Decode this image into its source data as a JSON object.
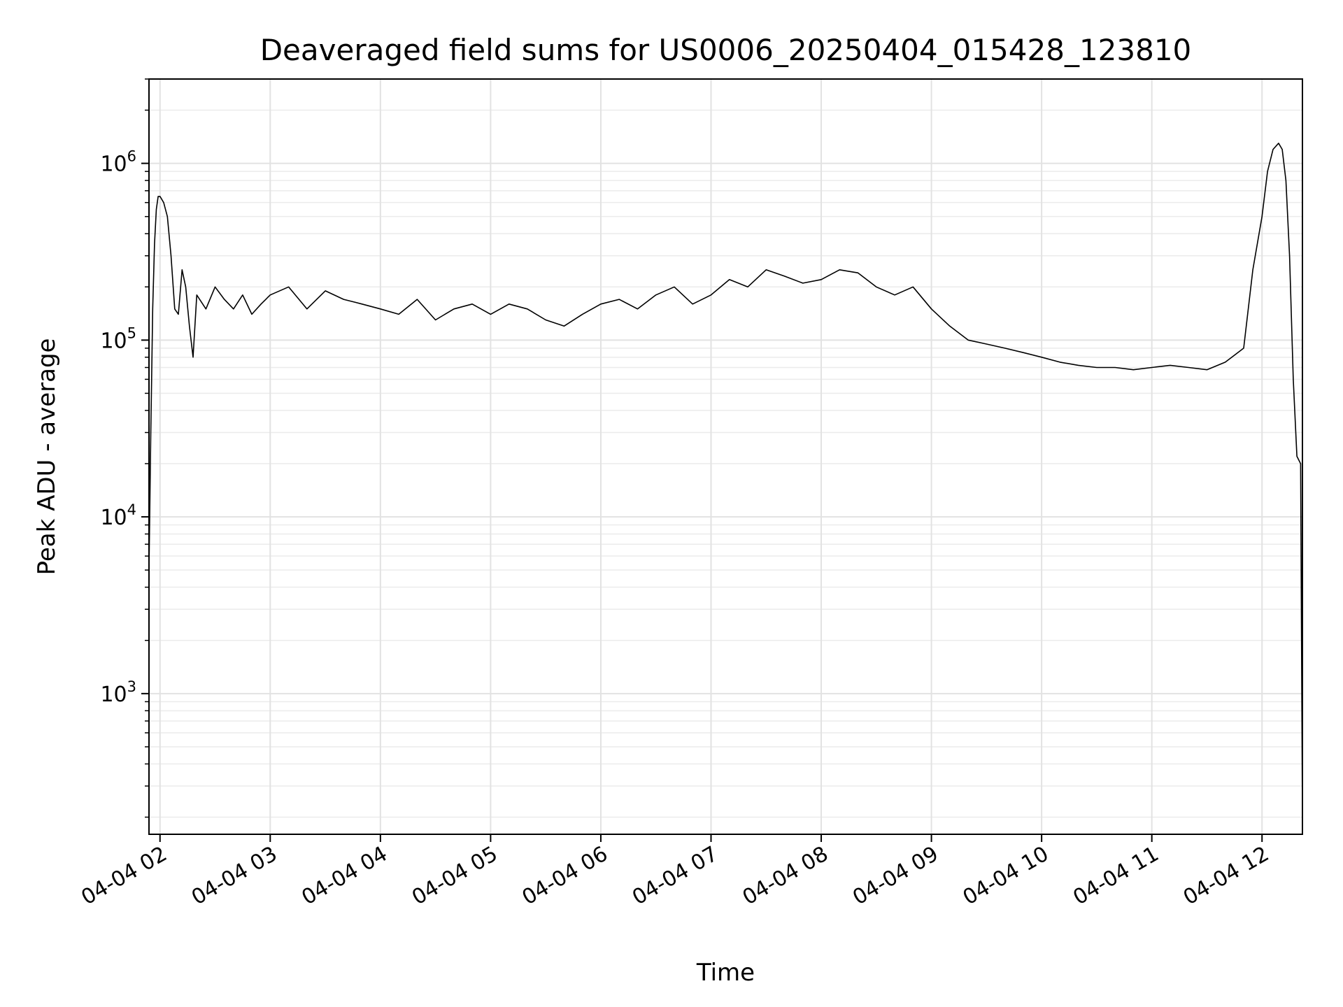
{
  "chart_data": {
    "type": "line",
    "title": "Deaveraged field sums for US0006_20250404_015428_123810",
    "xlabel": "Time",
    "ylabel": "Peak ADU - average",
    "yscale": "log",
    "ylim": [
      160,
      3000000
    ],
    "xlim": [
      "2025-04-04T01:54",
      "2025-04-04T12:22"
    ],
    "grid": true,
    "line_color": "#000000",
    "y_ticks": [
      {
        "base": "10",
        "exp": "3",
        "value": 1000
      },
      {
        "base": "10",
        "exp": "4",
        "value": 10000
      },
      {
        "base": "10",
        "exp": "5",
        "value": 100000
      },
      {
        "base": "10",
        "exp": "6",
        "value": 1000000
      }
    ],
    "x_ticks": [
      {
        "label": "04-04 02",
        "time": "2025-04-04T02:00"
      },
      {
        "label": "04-04 03",
        "time": "2025-04-04T03:00"
      },
      {
        "label": "04-04 04",
        "time": "2025-04-04T04:00"
      },
      {
        "label": "04-04 05",
        "time": "2025-04-04T05:00"
      },
      {
        "label": "04-04 06",
        "time": "2025-04-04T06:00"
      },
      {
        "label": "04-04 07",
        "time": "2025-04-04T07:00"
      },
      {
        "label": "04-04 08",
        "time": "2025-04-04T08:00"
      },
      {
        "label": "04-04 09",
        "time": "2025-04-04T09:00"
      },
      {
        "label": "04-04 10",
        "time": "2025-04-04T10:00"
      },
      {
        "label": "04-04 11",
        "time": "2025-04-04T11:00"
      },
      {
        "label": "04-04 12",
        "time": "2025-04-04T12:00"
      }
    ],
    "series": [
      {
        "x": [
          "2025-04-04T01:54",
          "2025-04-04T01:55",
          "2025-04-04T01:56",
          "2025-04-04T01:57",
          "2025-04-04T01:58",
          "2025-04-04T01:59",
          "2025-04-04T02:00",
          "2025-04-04T02:02",
          "2025-04-04T02:04",
          "2025-04-04T02:06",
          "2025-04-04T02:08",
          "2025-04-04T02:10",
          "2025-04-04T02:12",
          "2025-04-04T02:14",
          "2025-04-04T02:16",
          "2025-04-04T02:18",
          "2025-04-04T02:20",
          "2025-04-04T02:25",
          "2025-04-04T02:30",
          "2025-04-04T02:35",
          "2025-04-04T02:40",
          "2025-04-04T02:45",
          "2025-04-04T02:50",
          "2025-04-04T02:55",
          "2025-04-04T03:00",
          "2025-04-04T03:10",
          "2025-04-04T03:20",
          "2025-04-04T03:30",
          "2025-04-04T03:40",
          "2025-04-04T03:50",
          "2025-04-04T04:00",
          "2025-04-04T04:10",
          "2025-04-04T04:20",
          "2025-04-04T04:30",
          "2025-04-04T04:40",
          "2025-04-04T04:50",
          "2025-04-04T05:00",
          "2025-04-04T05:10",
          "2025-04-04T05:20",
          "2025-04-04T05:30",
          "2025-04-04T05:40",
          "2025-04-04T05:50",
          "2025-04-04T06:00",
          "2025-04-04T06:10",
          "2025-04-04T06:20",
          "2025-04-04T06:30",
          "2025-04-04T06:40",
          "2025-04-04T06:50",
          "2025-04-04T07:00",
          "2025-04-04T07:10",
          "2025-04-04T07:20",
          "2025-04-04T07:30",
          "2025-04-04T07:40",
          "2025-04-04T07:50",
          "2025-04-04T08:00",
          "2025-04-04T08:10",
          "2025-04-04T08:20",
          "2025-04-04T08:30",
          "2025-04-04T08:40",
          "2025-04-04T08:50",
          "2025-04-04T09:00",
          "2025-04-04T09:10",
          "2025-04-04T09:20",
          "2025-04-04T09:30",
          "2025-04-04T09:40",
          "2025-04-04T09:50",
          "2025-04-04T10:00",
          "2025-04-04T10:10",
          "2025-04-04T10:20",
          "2025-04-04T10:30",
          "2025-04-04T10:40",
          "2025-04-04T10:50",
          "2025-04-04T11:00",
          "2025-04-04T11:10",
          "2025-04-04T11:20",
          "2025-04-04T11:30",
          "2025-04-04T11:40",
          "2025-04-04T11:50",
          "2025-04-04T11:55",
          "2025-04-04T12:00",
          "2025-04-04T12:03",
          "2025-04-04T12:06",
          "2025-04-04T12:09",
          "2025-04-04T12:11",
          "2025-04-04T12:13",
          "2025-04-04T12:15",
          "2025-04-04T12:17",
          "2025-04-04T12:19",
          "2025-04-04T12:21",
          "2025-04-04T12:22"
        ],
        "y": [
          5000,
          30000,
          150000,
          350000,
          550000,
          650000,
          650000,
          600000,
          500000,
          300000,
          150000,
          140000,
          250000,
          200000,
          120000,
          80000,
          180000,
          150000,
          200000,
          170000,
          150000,
          180000,
          140000,
          160000,
          180000,
          200000,
          150000,
          190000,
          170000,
          160000,
          150000,
          140000,
          170000,
          130000,
          150000,
          160000,
          140000,
          160000,
          150000,
          130000,
          120000,
          140000,
          160000,
          170000,
          150000,
          180000,
          200000,
          160000,
          180000,
          220000,
          200000,
          250000,
          230000,
          210000,
          220000,
          250000,
          240000,
          200000,
          180000,
          200000,
          150000,
          120000,
          100000,
          95000,
          90000,
          85000,
          80000,
          75000,
          72000,
          70000,
          70000,
          68000,
          70000,
          72000,
          70000,
          68000,
          75000,
          90000,
          250000,
          500000,
          900000,
          1200000,
          1300000,
          1200000,
          800000,
          300000,
          60000,
          22000,
          20000,
          200
        ]
      }
    ]
  }
}
